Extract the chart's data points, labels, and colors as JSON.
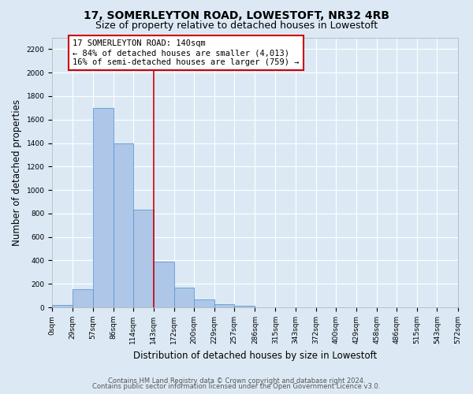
{
  "title": "17, SOMERLEYTON ROAD, LOWESTOFT, NR32 4RB",
  "subtitle": "Size of property relative to detached houses in Lowestoft",
  "xlabel": "Distribution of detached houses by size in Lowestoft",
  "ylabel": "Number of detached properties",
  "bar_edges": [
    0,
    29,
    57,
    86,
    114,
    143,
    172,
    200,
    229,
    257,
    286,
    315,
    343,
    372,
    400,
    429,
    458,
    486,
    515,
    543,
    572
  ],
  "bar_heights": [
    20,
    155,
    1700,
    1400,
    830,
    390,
    165,
    65,
    30,
    15,
    0,
    0,
    0,
    0,
    0,
    0,
    0,
    0,
    0,
    0
  ],
  "bar_color": "#aec6e8",
  "bar_edge_color": "#5b9bd5",
  "property_line_x": 143,
  "property_line_color": "#cc0000",
  "annotation_text": "17 SOMERLEYTON ROAD: 140sqm\n← 84% of detached houses are smaller (4,013)\n16% of semi-detached houses are larger (759) →",
  "annotation_box_color": "#cc0000",
  "ylim": [
    0,
    2300
  ],
  "yticks": [
    0,
    200,
    400,
    600,
    800,
    1000,
    1200,
    1400,
    1600,
    1800,
    2000,
    2200
  ],
  "tick_labels": [
    "0sqm",
    "29sqm",
    "57sqm",
    "86sqm",
    "114sqm",
    "143sqm",
    "172sqm",
    "200sqm",
    "229sqm",
    "257sqm",
    "286sqm",
    "315sqm",
    "343sqm",
    "372sqm",
    "400sqm",
    "429sqm",
    "458sqm",
    "486sqm",
    "515sqm",
    "543sqm",
    "572sqm"
  ],
  "footer_line1": "Contains HM Land Registry data © Crown copyright and database right 2024.",
  "footer_line2": "Contains public sector information licensed under the Open Government Licence v3.0.",
  "bg_color": "#dce9f5",
  "plot_bg_color": "#dce9f5",
  "grid_color": "#ffffff",
  "title_fontsize": 10,
  "subtitle_fontsize": 9,
  "axis_label_fontsize": 8.5,
  "tick_fontsize": 6.5,
  "annotation_fontsize": 7.5,
  "footer_fontsize": 6
}
